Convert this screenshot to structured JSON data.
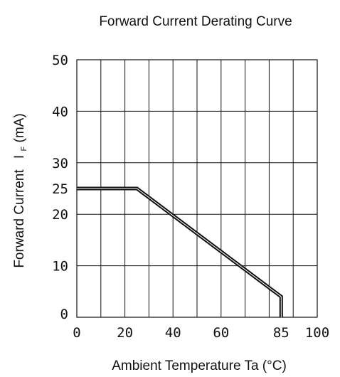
{
  "chart_data": {
    "type": "line",
    "title": "Forward Current Derating Curve",
    "xlabel": "Ambient Temperature Ta (°C)",
    "ylabel_main": "Forward Current",
    "ylabel_symbol": "I",
    "ylabel_subscript": "F",
    "ylabel_unit": "(mA)",
    "xlim": [
      0,
      100
    ],
    "ylim": [
      0,
      50
    ],
    "x_ticks": [
      "0",
      "20",
      "40",
      "60",
      "85",
      "100"
    ],
    "y_ticks": [
      "0",
      "10",
      "20",
      "25",
      "30",
      "40",
      "50"
    ],
    "grid": true,
    "series": [
      {
        "x": [
          0,
          25,
          85,
          85
        ],
        "y": [
          25,
          25,
          4,
          0
        ]
      }
    ]
  }
}
